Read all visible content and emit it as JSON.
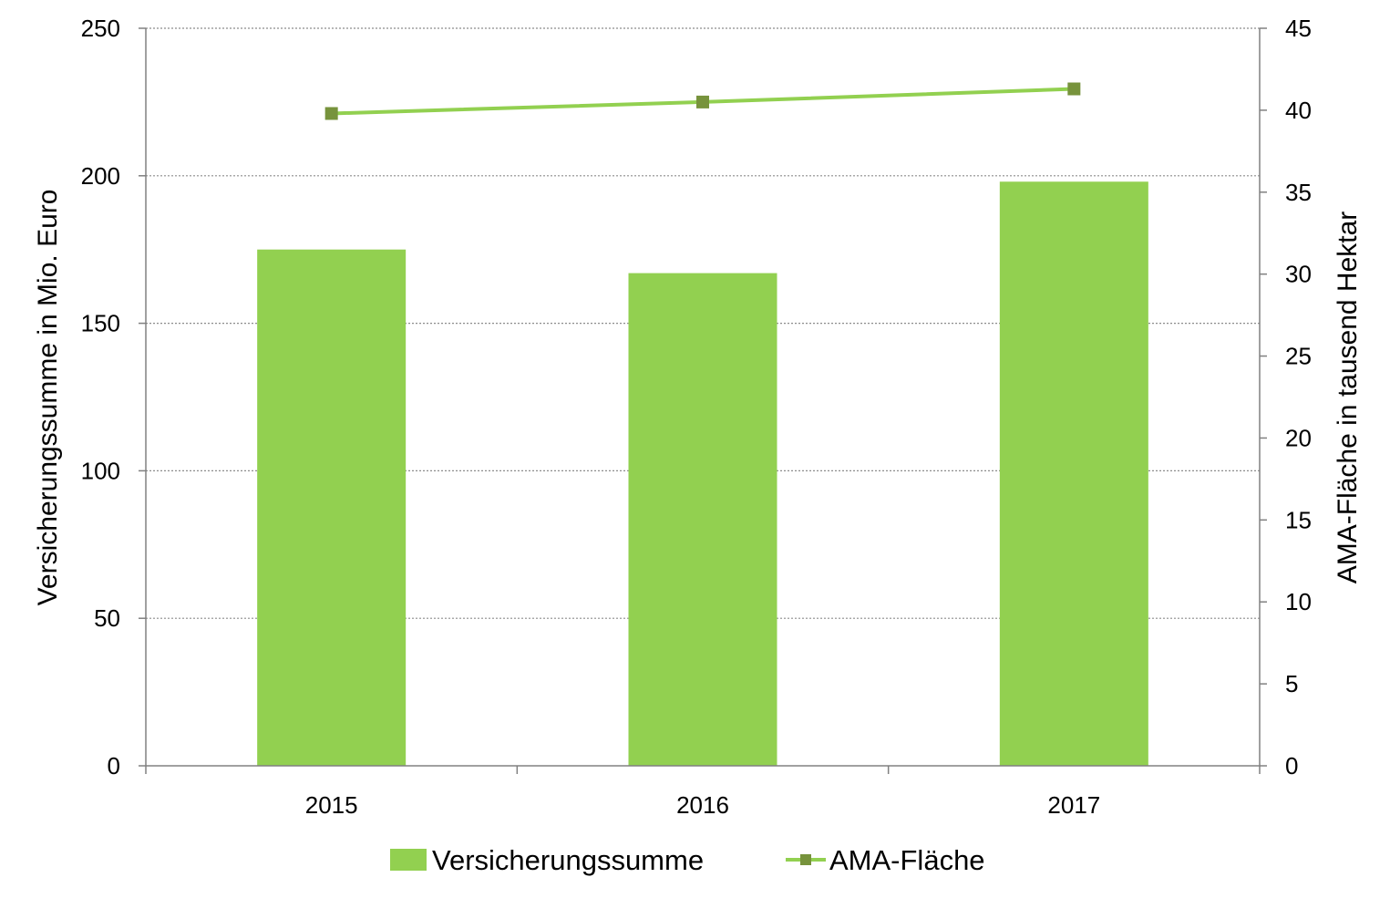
{
  "chart_data": {
    "type": "bar",
    "categories": [
      "2015",
      "2016",
      "2017"
    ],
    "series": [
      {
        "name": "Versicherungssumme",
        "type": "bar",
        "axis": "left",
        "values": [
          175,
          167,
          198
        ],
        "color": "#92d050"
      },
      {
        "name": "AMA-Fläche",
        "type": "line",
        "axis": "right",
        "values": [
          39.8,
          40.5,
          41.3
        ],
        "color": "#92d050",
        "marker_color": "#77933c",
        "marker": "square"
      }
    ],
    "ylabel": "Versicherungssumme in Mio. Euro",
    "ylabel_right": "AMA-Fläche in tausend Hektar",
    "ylim": [
      0,
      250
    ],
    "yticks": [
      "0",
      "50",
      "100",
      "150",
      "200",
      "250"
    ],
    "ylim_right": [
      0,
      45
    ],
    "yticks_right": [
      "0",
      "5",
      "10",
      "15",
      "20",
      "25",
      "30",
      "35",
      "40",
      "45"
    ],
    "grid": true,
    "legend": "bottom"
  }
}
